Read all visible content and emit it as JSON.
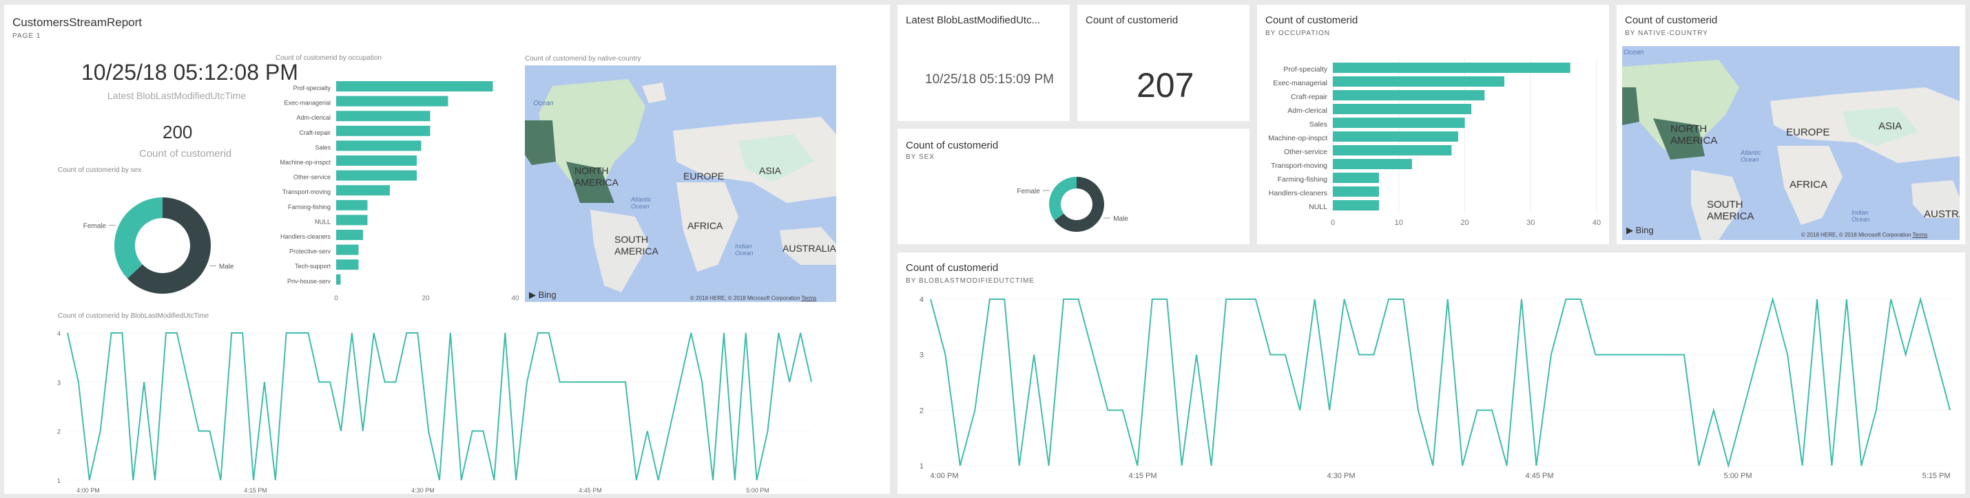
{
  "report": {
    "title": "CustomersStreamReport",
    "page": "PAGE 1",
    "latest_time": "10/25/18 05:12:08 PM",
    "latest_time_caption": "Latest BlobLastModifiedUtcTime",
    "count": "200",
    "count_caption": "Count of customerid",
    "occupation_title": "Count of customerid by occupation",
    "map_title": "Count of customerid by native-country",
    "sex_title": "Count of customerid by sex",
    "line_title": "Count of customerid by BlobLastModifiedUtcTime"
  },
  "tiles": {
    "latest": {
      "title": "Latest BlobLastModifiedUtc...",
      "value": "10/25/18 05:15:09 PM"
    },
    "count": {
      "title": "Count of customerid",
      "value": "207"
    },
    "occupation": {
      "title": "Count of customerid",
      "subtitle": "BY OCCUPATION"
    },
    "country": {
      "title": "Count of customerid",
      "subtitle": "BY NATIVE-COUNTRY"
    },
    "sex": {
      "title": "Count of customerid",
      "subtitle": "BY SEX"
    },
    "timeline": {
      "title": "Count of customerid",
      "subtitle": "BY BLOBLASTMODIFIEDUTCTIME"
    }
  },
  "map_labels": {
    "ocean1": "Ocean",
    "north_america": "NORTH\nAMERICA",
    "europe": "EUROPE",
    "asia": "ASIA",
    "africa": "AFRICA",
    "south_america": "SOUTH\nAMERICA",
    "australia": "AUSTRALIA",
    "australia_cut": "AUSTRALI",
    "atlantic": "Atlantic\nOcean",
    "indian": "Indian\nOcean",
    "bing": "Bing",
    "copyright_report": "© 2018 HERE, © 2018 Microsoft Corporation",
    "copyright_tile": "© 2018 HERE, © 2018 Microsoft Corporation",
    "terms": "Terms"
  },
  "colors": {
    "accent": "#3ebcaa",
    "dark": "#374649",
    "map_water": "#b2c9ee"
  },
  "chart_data": [
    {
      "id": "report-occupation",
      "type": "bar",
      "orientation": "horizontal",
      "title": "Count of customerid by occupation",
      "categories": [
        "Prof-specialty",
        "Exec-managerial",
        "Adm-clerical",
        "Craft-repair",
        "Sales",
        "Machine-op-inspct",
        "Other-service",
        "Transport-moving",
        "Farming-fishing",
        "NULL",
        "Handlers-cleaners",
        "Protective-serv",
        "Tech-support",
        "Priv-house-serv"
      ],
      "values": [
        35,
        25,
        21,
        21,
        19,
        18,
        18,
        12,
        7,
        7,
        6,
        5,
        5,
        1
      ],
      "xlim": [
        0,
        40
      ],
      "xticks": [
        "0",
        "20",
        "40"
      ]
    },
    {
      "id": "tile-occupation",
      "type": "bar",
      "orientation": "horizontal",
      "title": "Count of customerid",
      "subtitle": "BY OCCUPATION",
      "categories": [
        "Prof-specialty",
        "Exec-managerial",
        "Craft-repair",
        "Adm-clerical",
        "Sales",
        "Machine-op-inspct",
        "Other-service",
        "Transport-moving",
        "Farming-fishing",
        "Handlers-cleaners",
        "NULL"
      ],
      "values": [
        36,
        26,
        23,
        21,
        20,
        19,
        18,
        12,
        7,
        7,
        7
      ],
      "xlim": [
        0,
        40
      ],
      "xticks": [
        "0",
        "10",
        "20",
        "30",
        "40"
      ]
    },
    {
      "id": "report-sex",
      "type": "pie",
      "style": "donut",
      "title": "Count of customerid by sex",
      "labels": [
        "Male",
        "Female"
      ],
      "values": [
        63,
        37
      ]
    },
    {
      "id": "tile-sex",
      "type": "pie",
      "style": "donut",
      "title": "Count of customerid",
      "labels": [
        "Male",
        "Female"
      ],
      "values": [
        65,
        35
      ]
    },
    {
      "id": "report-timeline",
      "type": "line",
      "title": "Count of customerid by BlobLastModifiedUtcTime",
      "ylim": [
        1,
        4
      ],
      "yticks": [
        "1",
        "2",
        "3",
        "4"
      ],
      "xticks": [
        "4:00 PM",
        "4:15 PM",
        "4:30 PM",
        "4:45 PM",
        "5:00 PM"
      ],
      "values": [
        4,
        3,
        1,
        2,
        4,
        4,
        1,
        3,
        1,
        4,
        4,
        3,
        2,
        2,
        1,
        4,
        4,
        1,
        3,
        1,
        4,
        4,
        4,
        3,
        3,
        2,
        4,
        2,
        4,
        3,
        3,
        4,
        4,
        2,
        1,
        4,
        1,
        2,
        2,
        1,
        4,
        1,
        3,
        4,
        4,
        3,
        3,
        3,
        3,
        3,
        3,
        3,
        1,
        2,
        1,
        2,
        3,
        4,
        3,
        1,
        4,
        1,
        4,
        1,
        2,
        4,
        3,
        4,
        3
      ]
    },
    {
      "id": "tile-timeline",
      "type": "line",
      "title": "Count of customerid",
      "subtitle": "BY BLOBLASTMODIFIEDUTCTIME",
      "ylim": [
        1,
        4
      ],
      "yticks": [
        "1",
        "2",
        "3",
        "4"
      ],
      "xticks": [
        "4:00 PM",
        "4:15 PM",
        "4:30 PM",
        "4:45 PM",
        "5:00 PM",
        "5:15 PM"
      ],
      "values": [
        4,
        3,
        1,
        2,
        4,
        4,
        1,
        3,
        1,
        4,
        4,
        3,
        2,
        2,
        1,
        4,
        4,
        1,
        3,
        1,
        4,
        4,
        4,
        3,
        3,
        2,
        4,
        2,
        4,
        3,
        3,
        4,
        4,
        2,
        1,
        4,
        1,
        2,
        2,
        1,
        4,
        1,
        3,
        4,
        4,
        3,
        3,
        3,
        3,
        3,
        3,
        3,
        1,
        2,
        1,
        2,
        3,
        4,
        3,
        1,
        4,
        1,
        4,
        1,
        2,
        4,
        3,
        4,
        3,
        2
      ]
    }
  ]
}
